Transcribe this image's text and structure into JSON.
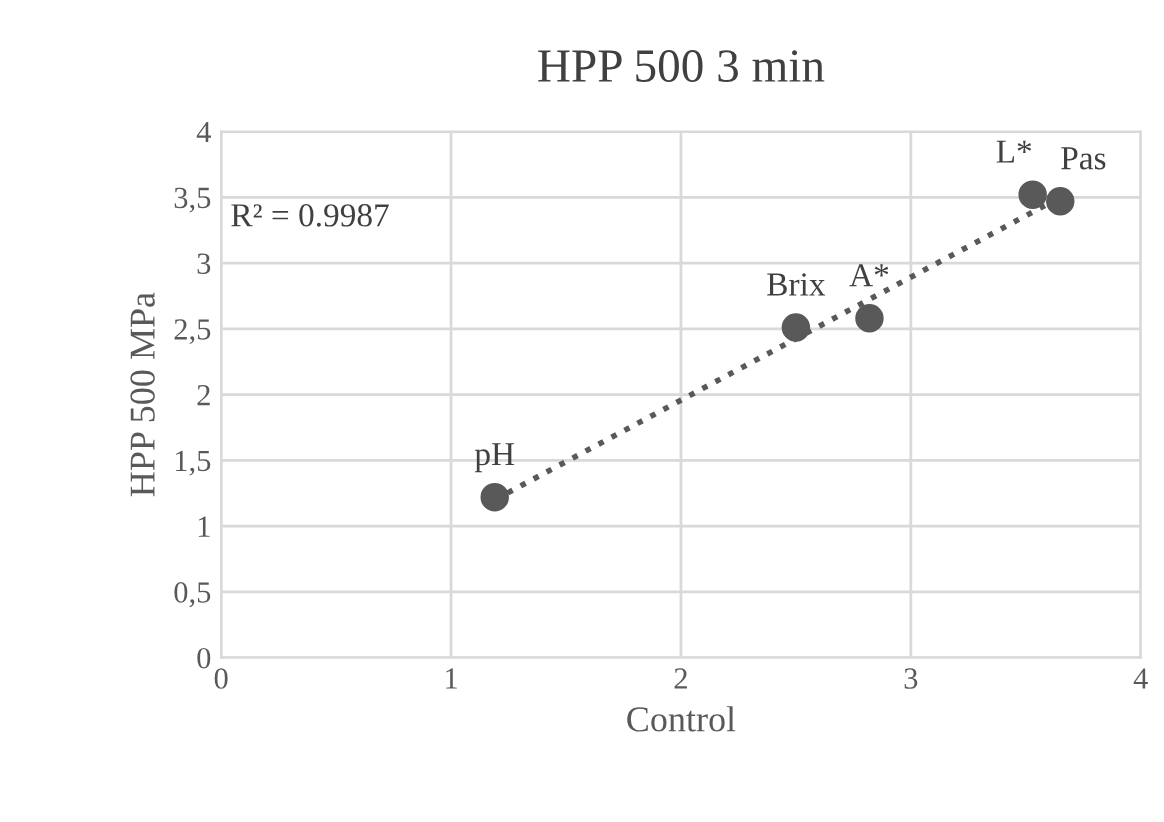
{
  "chart_data": {
    "type": "scatter",
    "title": "HPP 500 3 min",
    "xlabel": "Control",
    "ylabel": "HPP 500 MPa",
    "series": [
      {
        "color": "#595959",
        "marker": "circle",
        "x": [
          1.19,
          2.5,
          2.82,
          3.53,
          3.65
        ],
        "values": [
          1.22,
          2.51,
          2.58,
          3.52,
          3.47
        ]
      },
      {
        "type": "line",
        "color": "#595959",
        "line_style": "dotted",
        "x": [
          1.19,
          3.65
        ],
        "values": [
          1.2,
          3.5
        ]
      }
    ],
    "annotations": [
      {
        "text": "pH",
        "x": 1.19,
        "y": 1.22
      },
      {
        "text": "Brix",
        "x": 2.5,
        "y": 2.51
      },
      {
        "text": "A*",
        "x": 2.82,
        "y": 2.58
      },
      {
        "text": "L*",
        "x": 3.53,
        "y": 3.52
      },
      {
        "text": "Pas",
        "x": 3.65,
        "y": 3.47
      },
      "R² = 0.9987"
    ],
    "xlim": [
      0,
      4
    ],
    "xticks": [
      0,
      1,
      2,
      3,
      4
    ],
    "ylim": [
      0,
      4
    ],
    "yticks": [
      0,
      {
        "value": 0.5,
        "label": "0,5"
      },
      1,
      {
        "value": 1.5,
        "label": "1,5"
      },
      2,
      {
        "value": 2.5,
        "label": "2,5"
      },
      3,
      {
        "value": 3.5,
        "label": "3,5"
      },
      4
    ],
    "grid": true,
    "legend": false
  }
}
